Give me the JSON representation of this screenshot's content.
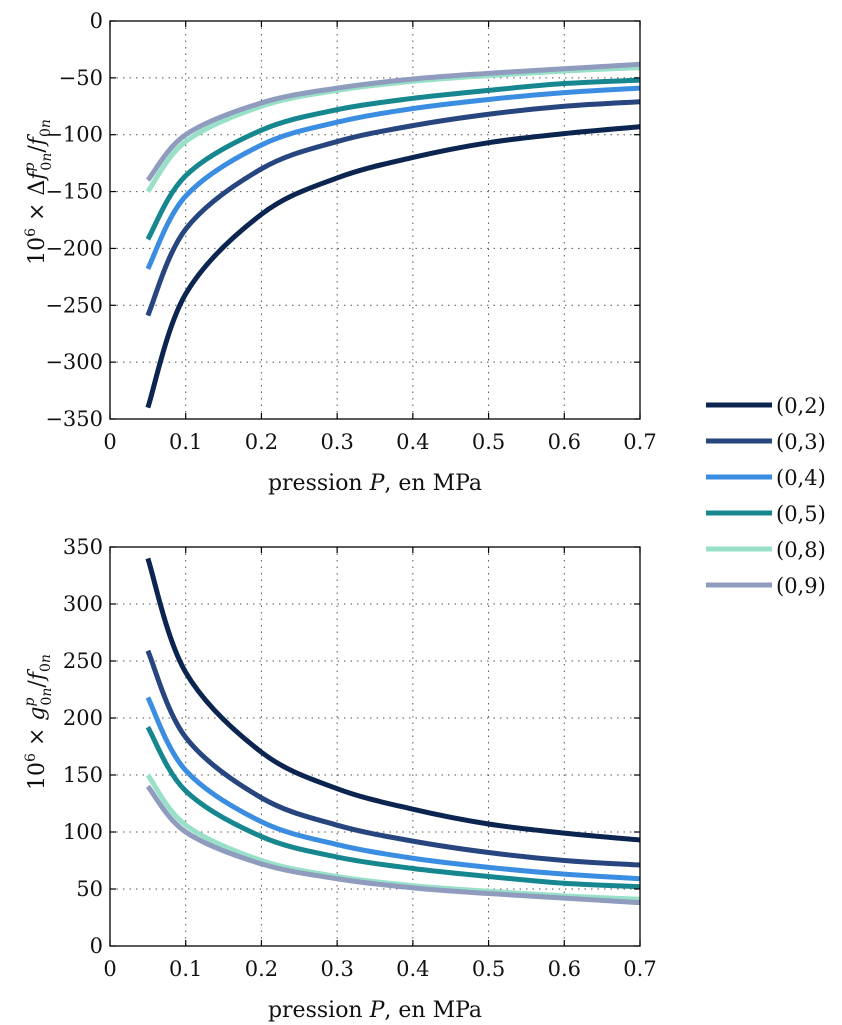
{
  "legend": {
    "placement": "right",
    "entries": [
      "(0,2)",
      "(0,3)",
      "(0,4)",
      "(0,5)",
      "(0,8)",
      "(0,9)"
    ]
  },
  "chart_data": [
    {
      "type": "line",
      "title": "",
      "xlabel": "pression P, en MPa",
      "ylabel": "10^6 × Δf^p_0n / f_0n",
      "xlim": [
        0,
        0.7
      ],
      "ylim": [
        -350,
        0
      ],
      "xticks": [
        0,
        0.1,
        0.2,
        0.3,
        0.4,
        0.5,
        0.6,
        0.7
      ],
      "yticks": [
        0,
        -50,
        -100,
        -150,
        -200,
        -250,
        -300,
        -350
      ],
      "xtick_labels": [
        "0",
        "0.1",
        "0.2",
        "0.3",
        "0.4",
        "0.5",
        "0.6",
        "0.7"
      ],
      "ytick_labels": [
        "0",
        "−50",
        "−100",
        "−150",
        "−200",
        "−250",
        "−300",
        "−350"
      ],
      "grid": true,
      "x": [
        0.05,
        0.1,
        0.2,
        0.3,
        0.4,
        0.5,
        0.6,
        0.7
      ],
      "series": [
        {
          "name": "(0,2)",
          "color": "#0b2550",
          "values": [
            -340,
            -240,
            -170,
            -138,
            -120,
            -107,
            -99,
            -93
          ]
        },
        {
          "name": "(0,3)",
          "color": "#27457e",
          "values": [
            -259,
            -183,
            -130,
            -106,
            -92,
            -82,
            -75,
            -71
          ]
        },
        {
          "name": "(0,4)",
          "color": "#3a8de0",
          "values": [
            -218,
            -154,
            -109,
            -89,
            -77,
            -69,
            -63,
            -59
          ]
        },
        {
          "name": "(0,5)",
          "color": "#17878f",
          "values": [
            -192,
            -136,
            -96,
            -78,
            -68,
            -61,
            -55,
            -52
          ]
        },
        {
          "name": "(0,8)",
          "color": "#99e0c9",
          "values": [
            -150,
            -106,
            -75,
            -61,
            -53,
            -48,
            -44,
            -41
          ]
        },
        {
          "name": "(0,9)",
          "color": "#8f9cbe",
          "values": [
            -140,
            -100,
            -72,
            -59,
            -51,
            -46,
            -42,
            -38
          ]
        }
      ]
    },
    {
      "type": "line",
      "title": "",
      "xlabel": "pression P, en MPa",
      "ylabel": "10^6 × g^p_0n / f_0n",
      "xlim": [
        0,
        0.7
      ],
      "ylim": [
        0,
        350
      ],
      "xticks": [
        0,
        0.1,
        0.2,
        0.3,
        0.4,
        0.5,
        0.6,
        0.7
      ],
      "yticks": [
        0,
        50,
        100,
        150,
        200,
        250,
        300,
        350
      ],
      "xtick_labels": [
        "0",
        "0.1",
        "0.2",
        "0.3",
        "0.4",
        "0.5",
        "0.6",
        "0.7"
      ],
      "ytick_labels": [
        "0",
        "50",
        "100",
        "150",
        "200",
        "250",
        "300",
        "350"
      ],
      "grid": true,
      "x": [
        0.05,
        0.1,
        0.2,
        0.3,
        0.4,
        0.5,
        0.6,
        0.7
      ],
      "series": [
        {
          "name": "(0,2)",
          "color": "#0b2550",
          "values": [
            340,
            240,
            170,
            138,
            120,
            107,
            99,
            93
          ]
        },
        {
          "name": "(0,3)",
          "color": "#27457e",
          "values": [
            259,
            183,
            130,
            106,
            92,
            82,
            75,
            71
          ]
        },
        {
          "name": "(0,4)",
          "color": "#3a8de0",
          "values": [
            218,
            154,
            109,
            89,
            77,
            69,
            63,
            59
          ]
        },
        {
          "name": "(0,5)",
          "color": "#17878f",
          "values": [
            192,
            136,
            96,
            78,
            68,
            61,
            55,
            52
          ]
        },
        {
          "name": "(0,8)",
          "color": "#99e0c9",
          "values": [
            150,
            106,
            75,
            61,
            53,
            48,
            44,
            41
          ]
        },
        {
          "name": "(0,9)",
          "color": "#8f9cbe",
          "values": [
            140,
            100,
            72,
            59,
            51,
            46,
            42,
            38
          ]
        }
      ]
    }
  ]
}
